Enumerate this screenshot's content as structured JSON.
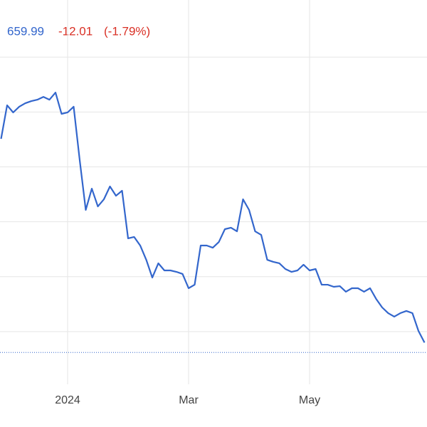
{
  "header": {
    "price": "659.99",
    "change": "-12.01",
    "change_percent": "(-1.79%)"
  },
  "chart_data": {
    "type": "line",
    "categories": [
      null,
      null,
      null,
      null,
      null,
      null,
      null,
      null,
      null,
      null,
      null,
      "2024",
      null,
      null,
      null,
      null,
      null,
      null,
      null,
      null,
      null,
      null,
      null,
      null,
      null,
      null,
      null,
      null,
      null,
      null,
      null,
      "Mar",
      null,
      null,
      null,
      null,
      null,
      null,
      null,
      null,
      null,
      null,
      null,
      null,
      null,
      null,
      null,
      null,
      null,
      null,
      null,
      "May",
      null,
      null,
      null,
      null,
      null,
      null,
      null,
      null,
      null,
      null,
      null,
      null,
      null,
      null,
      null,
      null,
      null,
      null,
      null
    ],
    "series": [
      {
        "color": "#3366cc",
        "values": [
          845.6,
          876.1,
          869.6,
          874.8,
          878.0,
          879.9,
          881.2,
          883.8,
          881.2,
          887.7,
          868.3,
          869.6,
          874.8,
          826.2,
          780.8,
          800.2,
          784.0,
          790.5,
          802.2,
          793.7,
          798.3,
          754.9,
          756.2,
          748.4,
          735.4,
          719.2,
          732.2,
          725.7,
          725.7,
          724.4,
          722.5,
          709.5,
          712.7,
          748.4,
          748.4,
          746.4,
          751.6,
          763.3,
          764.6,
          761.3,
          790.5,
          780.8,
          761.3,
          758.1,
          735.4,
          733.5,
          732.2,
          727.0,
          724.4,
          725.7,
          730.9,
          725.7,
          727.0,
          712.7,
          712.7,
          710.8,
          711.4,
          706.3,
          709.5,
          709.5,
          706.3,
          709.5,
          699.8,
          692.0,
          686.8,
          683.6,
          686.8,
          688.8,
          686.8,
          670.6,
          660
        ]
      }
    ],
    "ylim": [
      622,
      972
    ],
    "yticks": [
      670,
      720,
      770,
      820,
      870,
      920
    ],
    "grid": true,
    "reference_value": 651,
    "reference_color": "#3366cc"
  }
}
